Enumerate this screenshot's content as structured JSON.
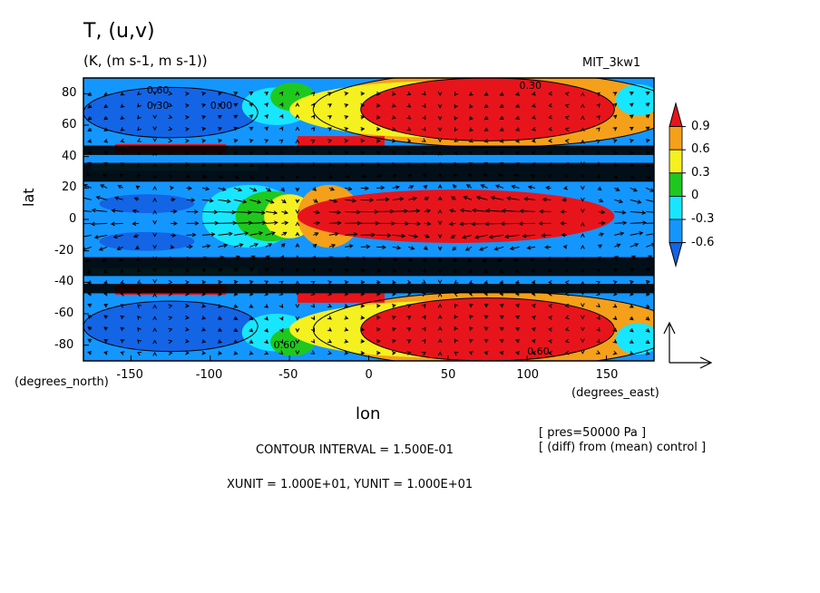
{
  "chart_data": {
    "type": "heatmap",
    "title": "T, (u,v)",
    "subtitle": "(K, (m s-1, m s-1))",
    "dataset_label": "MIT_3kw1",
    "xlabel": "lon",
    "ylabel": "lat",
    "x_unit_label": "(degrees_east)",
    "y_unit_label": "(degrees_north)",
    "xlim": [
      -180,
      180
    ],
    "ylim": [
      -90,
      90
    ],
    "x_ticks": [
      "-150",
      "-100",
      "-50",
      "0",
      "50",
      "100",
      "150"
    ],
    "y_ticks": [
      "80",
      "60",
      "40",
      "20",
      "0",
      "-20",
      "-40",
      "-60",
      "-80"
    ],
    "colorbar": {
      "ticks": [
        "0.9",
        "0.6",
        "0.3",
        "0",
        "-0.3",
        "-0.6"
      ],
      "colors": [
        "#e8141c",
        "#f5a01a",
        "#f5f020",
        "#1ec81e",
        "#18e6ff",
        "#1496ff",
        "#1464e6"
      ]
    },
    "contour_labels": [
      "0.60",
      "0.30",
      "0.00",
      "0.60",
      "0.30",
      "0.60"
    ],
    "vector_overlay": true,
    "annotations": {
      "contour_interval": "CONTOUR INTERVAL = 1.500E-01",
      "units": "XUNIT = 1.000E+01, YUNIT = 1.000E+01",
      "pressure": "[ pres=50000 Pa ]",
      "diff": "[ (diff) from (mean) control ]"
    }
  }
}
